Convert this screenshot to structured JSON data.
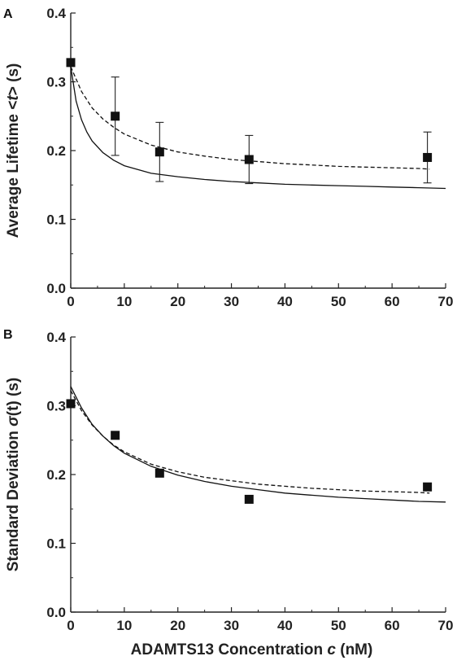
{
  "chart_data": [
    {
      "type": "scatter",
      "panel_label": "A",
      "ylabel_parts": {
        "prefix": "Average Lifetime <",
        "symbol": "t",
        "suffix": "> (s)"
      },
      "xlim": [
        0,
        70
      ],
      "ylim": [
        0,
        0.4
      ],
      "xticks": [
        "0",
        "10",
        "20",
        "30",
        "40",
        "50",
        "60",
        "70"
      ],
      "yticks": [
        "0.0",
        "0.1",
        "0.2",
        "0.3",
        "0.4"
      ],
      "grid": false,
      "series": [
        {
          "style": "markers",
          "x": [
            0,
            8.3,
            16.6,
            33.3,
            66.6
          ],
          "y": [
            0.328,
            0.25,
            0.198,
            0.187,
            0.19
          ],
          "err": [
            0,
            0.057,
            0.043,
            0.035,
            0.037
          ]
        },
        {
          "style": "dashed-curve",
          "x": [
            0,
            2,
            4,
            6,
            8,
            10,
            15,
            20,
            25,
            30,
            35,
            40,
            45,
            50,
            55,
            60,
            65,
            67
          ],
          "y": [
            0.322,
            0.286,
            0.262,
            0.246,
            0.234,
            0.224,
            0.208,
            0.198,
            0.192,
            0.187,
            0.184,
            0.181,
            0.179,
            0.177,
            0.176,
            0.175,
            0.174,
            0.173
          ]
        },
        {
          "style": "solid-curve",
          "x": [
            0,
            1,
            2,
            3,
            4,
            6,
            8,
            10,
            15,
            20,
            25,
            30,
            35,
            40,
            45,
            50,
            55,
            60,
            65,
            70
          ],
          "y": [
            0.322,
            0.272,
            0.245,
            0.227,
            0.214,
            0.197,
            0.186,
            0.178,
            0.167,
            0.162,
            0.158,
            0.155,
            0.153,
            0.151,
            0.15,
            0.149,
            0.148,
            0.147,
            0.146,
            0.145
          ]
        }
      ]
    },
    {
      "type": "scatter",
      "panel_label": "B",
      "ylabel_parts": {
        "prefix": "Standard Deviation ",
        "symbol": "σ",
        "suffix": "(t) (s)"
      },
      "xlabel_parts": {
        "prefix": "ADAMTS13 Concentration ",
        "symbol": "c",
        "suffix": " (nM)"
      },
      "xlim": [
        0,
        70
      ],
      "ylim": [
        0,
        0.4
      ],
      "xticks": [
        "0",
        "10",
        "20",
        "30",
        "40",
        "50",
        "60",
        "70"
      ],
      "yticks": [
        "0.0",
        "0.1",
        "0.2",
        "0.3",
        "0.4"
      ],
      "grid": false,
      "series": [
        {
          "style": "markers",
          "x": [
            0,
            8.3,
            16.6,
            33.3,
            66.6
          ],
          "y": [
            0.303,
            0.257,
            0.202,
            0.164,
            0.182
          ]
        },
        {
          "style": "dashed-curve",
          "x": [
            0,
            2,
            4,
            6,
            8,
            10,
            15,
            20,
            25,
            30,
            35,
            40,
            45,
            50,
            55,
            60,
            65,
            67
          ],
          "y": [
            0.322,
            0.293,
            0.272,
            0.256,
            0.243,
            0.233,
            0.215,
            0.204,
            0.196,
            0.191,
            0.186,
            0.183,
            0.18,
            0.178,
            0.176,
            0.175,
            0.174,
            0.173
          ]
        },
        {
          "style": "solid-curve",
          "x": [
            0,
            2,
            4,
            6,
            8,
            10,
            15,
            20,
            25,
            30,
            35,
            40,
            45,
            50,
            55,
            60,
            65,
            70
          ],
          "y": [
            0.328,
            0.297,
            0.273,
            0.256,
            0.242,
            0.231,
            0.212,
            0.199,
            0.19,
            0.183,
            0.178,
            0.173,
            0.17,
            0.167,
            0.165,
            0.163,
            0.161,
            0.16
          ]
        }
      ]
    }
  ]
}
